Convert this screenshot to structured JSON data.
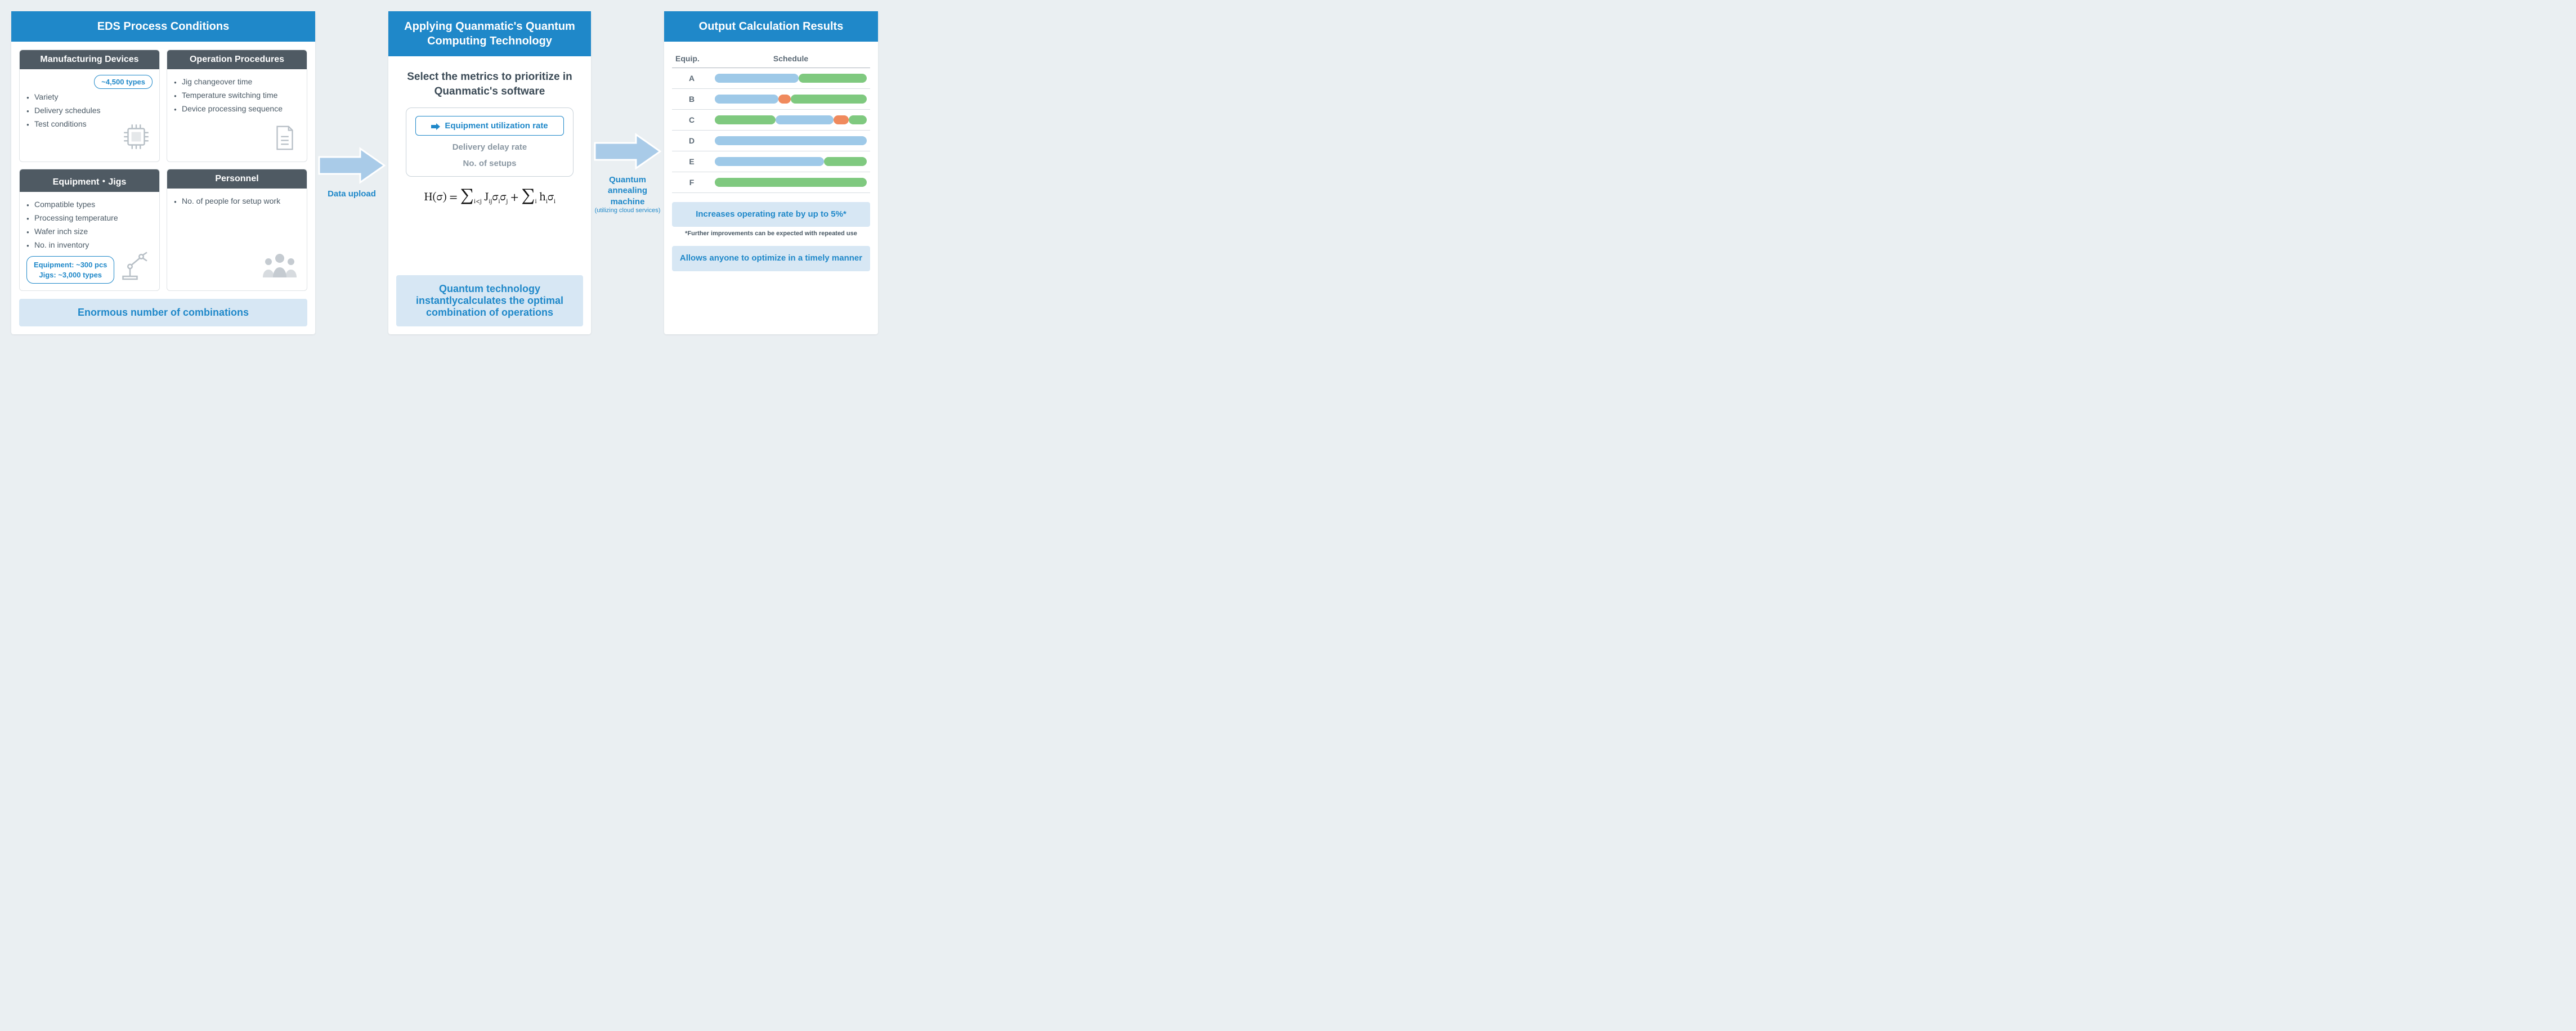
{
  "colors": {
    "header_bg": "#1f88c9",
    "card_header_bg": "#4f5a63",
    "accent_blue": "#1f88c9",
    "callout_bg": "#d7e7f4",
    "arrow_fill": "#a9cbe8",
    "bar_blue": "#9ec9e8",
    "bar_green": "#7fc97f",
    "bar_orange": "#f08a5d",
    "text_muted": "#4b5a66"
  },
  "panel1": {
    "title": "EDS Process Conditions",
    "cards": [
      {
        "title": "Manufacturing Devices",
        "items": [
          "Variety",
          "Delivery schedules",
          "Test conditions"
        ],
        "pill": "~4,500 types",
        "icon": "chip"
      },
      {
        "title": "Operation Procedures",
        "items": [
          "Jig changeover time",
          "Temperature switching time",
          "Device processing sequence"
        ],
        "icon": "document"
      },
      {
        "title": "Equipment・Jigs",
        "items": [
          "Compatible types",
          "Processing temperature",
          "Wafer inch size",
          "No. in inventory"
        ],
        "pill_lines": [
          "Equipment: ~300 pcs",
          "Jigs: ~3,000 types"
        ],
        "icon": "robot-arm"
      },
      {
        "title": "Personnel",
        "items": [
          "No. of people for setup work"
        ],
        "icon": "people"
      }
    ],
    "callout": "Enormous number of combinations"
  },
  "arrow1": {
    "label": "Data upload"
  },
  "panel2": {
    "title": "Applying Quanmatic's Quantum Computing Technology",
    "select_title": "Select the metrics to prioritize in Quanmatic's software",
    "metrics": {
      "selected": "Equipment utilization rate",
      "others": [
        "Delivery delay rate",
        "No. of setups"
      ]
    },
    "formula_html": "H(σ) = <span style='font-size:26px'>∑</span><span class='sub'>i&lt;j</span> J<span class='sub'>ij</span>σ<span class='sub'>i</span>σ<span class='sub'>j</span> + <span style='font-size:26px'>∑</span><span class='sub'>i</span> h<span class='sub'>i</span>σ<span class='sub'>i</span>",
    "callout": "Quantum technology instantlycalculates the optimal combination of operations"
  },
  "arrow2": {
    "label": "Quantum annealing machine",
    "sub": "(utilizing cloud services)"
  },
  "panel3": {
    "title": "Output Calculation Results",
    "table": {
      "col_equip": "Equip.",
      "col_schedule": "Schedule",
      "rows": [
        {
          "eq": "A",
          "segs": [
            {
              "start": 0,
              "end": 55,
              "color": "bar_blue"
            },
            {
              "start": 55,
              "end": 100,
              "color": "bar_green"
            }
          ]
        },
        {
          "eq": "B",
          "segs": [
            {
              "start": 0,
              "end": 42,
              "color": "bar_blue"
            },
            {
              "start": 42,
              "end": 50,
              "color": "bar_orange"
            },
            {
              "start": 50,
              "end": 100,
              "color": "bar_green"
            }
          ]
        },
        {
          "eq": "C",
          "segs": [
            {
              "start": 0,
              "end": 40,
              "color": "bar_green"
            },
            {
              "start": 40,
              "end": 78,
              "color": "bar_blue"
            },
            {
              "start": 78,
              "end": 88,
              "color": "bar_orange"
            },
            {
              "start": 88,
              "end": 100,
              "color": "bar_green"
            }
          ]
        },
        {
          "eq": "D",
          "segs": [
            {
              "start": 0,
              "end": 100,
              "color": "bar_blue"
            }
          ]
        },
        {
          "eq": "E",
          "segs": [
            {
              "start": 0,
              "end": 72,
              "color": "bar_blue"
            },
            {
              "start": 72,
              "end": 100,
              "color": "bar_green"
            }
          ]
        },
        {
          "eq": "F",
          "segs": [
            {
              "start": 0,
              "end": 100,
              "color": "bar_green"
            }
          ]
        }
      ]
    },
    "result1": "Increases operating rate by up to 5%*",
    "footnote": "*Further improvements can be expected with repeated use",
    "result2": "Allows anyone to optimize in a timely manner"
  }
}
